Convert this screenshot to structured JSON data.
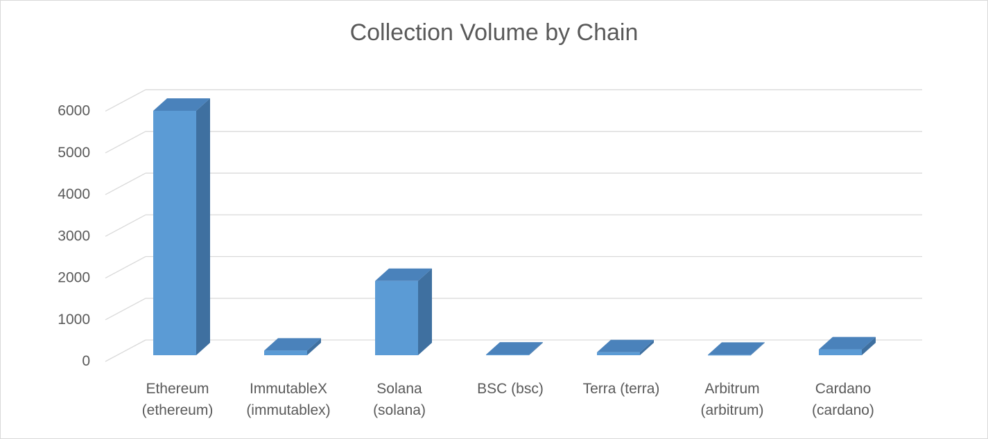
{
  "chart_data": {
    "type": "bar",
    "title": "Collection Volume by Chain",
    "xlabel": "",
    "ylabel": "",
    "categories": [
      [
        "Ethereum",
        "(ethereum)"
      ],
      [
        "ImmutableX",
        "(immutablex)"
      ],
      [
        "Solana",
        "(solana)"
      ],
      [
        "BSC (bsc)"
      ],
      [
        "Terra (terra)"
      ],
      [
        "Arbitrum",
        "(arbitrum)"
      ],
      [
        "Cardano",
        "(cardano)"
      ]
    ],
    "values": [
      5860,
      110,
      1780,
      15,
      70,
      10,
      140
    ],
    "ylim": [
      0,
      6000
    ],
    "yticks": [
      0,
      1000,
      2000,
      3000,
      4000,
      5000,
      6000
    ],
    "grid": true,
    "legend": "none",
    "three_d": true,
    "colors": {
      "front": "#5b9bd5",
      "side": "#3f70a0",
      "top": "#4a82bb",
      "grid": "#d9d9d9",
      "text": "#595959"
    }
  }
}
